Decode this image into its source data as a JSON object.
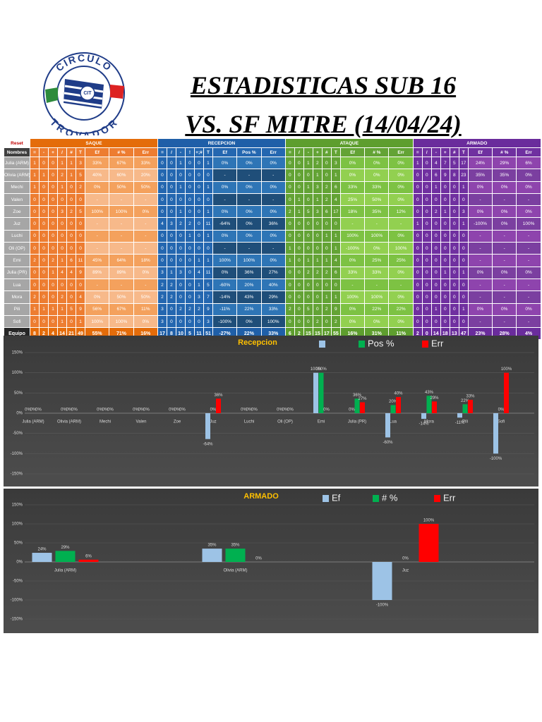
{
  "header": {
    "logo": {
      "top": "CIRCULO",
      "bottom": "TROVADOR",
      "badge": "CIT"
    },
    "title": "ESTADISTICAS SUB 16",
    "subtitle": "VS. SF MITRE (14/04/24)"
  },
  "table": {
    "reset": "Reset",
    "sections": [
      "SAQUE",
      "RECEPCION",
      "ATAQUE",
      "ARMADO"
    ],
    "columns": [
      "Nombres",
      "=",
      "-",
      "+",
      "/",
      "#",
      "T",
      "Ef",
      "# %",
      "Err",
      "=",
      "/",
      "-",
      "!",
      "+;#",
      "T",
      "Ef",
      "Pos %",
      "Err",
      "=",
      "/",
      "-",
      "+",
      "#",
      "T",
      "Ef",
      "# %",
      "Err",
      "=",
      "/",
      "-",
      "+",
      "#",
      "T",
      "Ef",
      "# %",
      "Err"
    ],
    "rows": [
      [
        "Julia (ARM)",
        "1",
        "0",
        "0",
        "1",
        "1",
        "3",
        "33%",
        "67%",
        "33%",
        "0",
        "0",
        "1",
        "0",
        "0",
        "1",
        "0%",
        "0%",
        "0%",
        "0",
        "0",
        "1",
        "2",
        "0",
        "3",
        "0%",
        "0%",
        "0%",
        "1",
        "0",
        "4",
        "7",
        "5",
        "17",
        "24%",
        "29%",
        "6%"
      ],
      [
        "Olivia (ARM)",
        "1",
        "1",
        "0",
        "2",
        "1",
        "5",
        "40%",
        "60%",
        "20%",
        "0",
        "0",
        "0",
        "0",
        "0",
        "0",
        "-",
        "-",
        "-",
        "0",
        "0",
        "0",
        "1",
        "0",
        "1",
        "0%",
        "0%",
        "0%",
        "0",
        "0",
        "6",
        "9",
        "8",
        "23",
        "35%",
        "35%",
        "0%"
      ],
      [
        "Mechi",
        "1",
        "0",
        "0",
        "1",
        "0",
        "2",
        "0%",
        "50%",
        "50%",
        "0",
        "0",
        "1",
        "0",
        "0",
        "1",
        "0%",
        "0%",
        "0%",
        "0",
        "0",
        "1",
        "3",
        "2",
        "6",
        "33%",
        "33%",
        "0%",
        "0",
        "0",
        "1",
        "0",
        "0",
        "1",
        "0%",
        "0%",
        "0%"
      ],
      [
        "Valen",
        "0",
        "0",
        "0",
        "0",
        "0",
        "0",
        "-",
        "-",
        "-",
        "0",
        "0",
        "0",
        "0",
        "0",
        "0",
        "-",
        "-",
        "-",
        "0",
        "1",
        "0",
        "1",
        "2",
        "4",
        "25%",
        "50%",
        "0%",
        "0",
        "0",
        "0",
        "0",
        "0",
        "0",
        "-",
        "-",
        "-"
      ],
      [
        "Zoe",
        "0",
        "0",
        "0",
        "3",
        "2",
        "5",
        "100%",
        "100%",
        "0%",
        "0",
        "0",
        "1",
        "0",
        "0",
        "1",
        "0%",
        "0%",
        "0%",
        "2",
        "1",
        "5",
        "3",
        "6",
        "17",
        "18%",
        "35%",
        "12%",
        "0",
        "0",
        "2",
        "1",
        "0",
        "3",
        "0%",
        "0%",
        "0%"
      ],
      [
        "Juz",
        "0",
        "0",
        "0",
        "0",
        "0",
        "0",
        "-",
        "-",
        "-",
        "4",
        "3",
        "2",
        "2",
        "0",
        "11",
        "-64%",
        "0%",
        "36%",
        "0",
        "0",
        "0",
        "0",
        "0",
        "0",
        "-",
        "-",
        "-",
        "1",
        "0",
        "0",
        "0",
        "0",
        "1",
        "-100%",
        "0%",
        "100%"
      ],
      [
        "Luchi",
        "0",
        "0",
        "0",
        "0",
        "0",
        "0",
        "-",
        "-",
        "-",
        "0",
        "0",
        "0",
        "1",
        "0",
        "1",
        "0%",
        "0%",
        "0%",
        "0",
        "0",
        "0",
        "0",
        "1",
        "1",
        "100%",
        "100%",
        "0%",
        "0",
        "0",
        "0",
        "0",
        "0",
        "0",
        "-",
        "-",
        "-"
      ],
      [
        "Oli (OP)",
        "0",
        "0",
        "0",
        "0",
        "0",
        "0",
        "-",
        "-",
        "-",
        "0",
        "0",
        "0",
        "0",
        "0",
        "0",
        "-",
        "-",
        "-",
        "1",
        "0",
        "0",
        "0",
        "0",
        "1",
        "-100%",
        "0%",
        "100%",
        "0",
        "0",
        "0",
        "0",
        "0",
        "0",
        "-",
        "-",
        "-"
      ],
      [
        "Emi",
        "2",
        "0",
        "2",
        "1",
        "6",
        "11",
        "45%",
        "64%",
        "18%",
        "0",
        "0",
        "0",
        "0",
        "1",
        "1",
        "100%",
        "100%",
        "0%",
        "1",
        "0",
        "1",
        "1",
        "1",
        "4",
        "0%",
        "25%",
        "25%",
        "0",
        "0",
        "0",
        "0",
        "0",
        "0",
        "-",
        "-",
        "-"
      ],
      [
        "Julia (PR)",
        "0",
        "0",
        "1",
        "4",
        "4",
        "9",
        "89%",
        "89%",
        "0%",
        "3",
        "1",
        "3",
        "0",
        "4",
        "11",
        "0%",
        "36%",
        "27%",
        "0",
        "0",
        "2",
        "2",
        "2",
        "6",
        "33%",
        "33%",
        "0%",
        "0",
        "0",
        "0",
        "1",
        "0",
        "1",
        "0%",
        "0%",
        "0%"
      ],
      [
        "Lua",
        "0",
        "0",
        "0",
        "0",
        "0",
        "0",
        "-",
        "-",
        "-",
        "2",
        "2",
        "0",
        "0",
        "1",
        "5",
        "-60%",
        "20%",
        "40%",
        "0",
        "0",
        "0",
        "0",
        "0",
        "0",
        "-",
        "-",
        "-",
        "0",
        "0",
        "0",
        "0",
        "0",
        "0",
        "-",
        "-",
        "-"
      ],
      [
        "Mora",
        "2",
        "0",
        "0",
        "2",
        "0",
        "4",
        "0%",
        "50%",
        "50%",
        "2",
        "2",
        "0",
        "0",
        "3",
        "7",
        "-14%",
        "43%",
        "29%",
        "0",
        "0",
        "0",
        "0",
        "1",
        "1",
        "100%",
        "100%",
        "0%",
        "0",
        "0",
        "0",
        "0",
        "0",
        "0",
        "-",
        "-",
        "-"
      ],
      [
        "Pili",
        "1",
        "1",
        "1",
        "1",
        "5",
        "9",
        "56%",
        "67%",
        "11%",
        "3",
        "0",
        "2",
        "2",
        "2",
        "9",
        "-11%",
        "22%",
        "33%",
        "2",
        "0",
        "5",
        "0",
        "2",
        "9",
        "0%",
        "22%",
        "22%",
        "0",
        "0",
        "1",
        "0",
        "0",
        "1",
        "0%",
        "0%",
        "0%"
      ],
      [
        "Sofi",
        "0",
        "0",
        "0",
        "1",
        "0",
        "1",
        "100%",
        "100%",
        "0%",
        "3",
        "0",
        "0",
        "0",
        "0",
        "3",
        "-100%",
        "0%",
        "100%",
        "0",
        "0",
        "0",
        "2",
        "0",
        "2",
        "0%",
        "0%",
        "0%",
        "0",
        "0",
        "0",
        "0",
        "0",
        "0",
        "-",
        "-",
        "-"
      ],
      [
        "Equipo",
        "8",
        "2",
        "4",
        "14",
        "21",
        "49",
        "55%",
        "71%",
        "16%",
        "17",
        "8",
        "10",
        "5",
        "11",
        "51",
        "-27%",
        "22%",
        "33%",
        "6",
        "2",
        "15",
        "15",
        "17",
        "55",
        "16%",
        "31%",
        "11%",
        "2",
        "0",
        "14",
        "18",
        "13",
        "47",
        "23%",
        "28%",
        "4%"
      ]
    ]
  },
  "chart_data": [
    {
      "type": "bar",
      "title": "Recepcion",
      "categories": [
        "Julia (ARM)",
        "Olivia (ARM)",
        "Mechi",
        "Valen",
        "Zoe",
        "Juz",
        "Luchi",
        "Oli (OP)",
        "Emi",
        "Julia (PR)",
        "Lua",
        "Mora",
        "Pili",
        "Sofi"
      ],
      "series": [
        {
          "color": "#9dc3e6",
          "values": [
            0,
            0,
            0,
            0,
            0,
            -64,
            0,
            0,
            100,
            0,
            -60,
            -14,
            -11,
            -100
          ],
          "value_labels": [
            "0%",
            "0%",
            "0%",
            "0%",
            "0%",
            "-64%",
            "0%",
            "0%",
            "100%",
            "0%",
            "-60%",
            "-14%",
            "-11%",
            "-100%"
          ]
        },
        {
          "name": "Pos %",
          "color": "#00b050",
          "values": [
            0,
            0,
            0,
            0,
            0,
            0,
            0,
            0,
            100,
            36,
            20,
            43,
            22,
            0
          ],
          "value_labels": [
            "0%",
            "0%",
            "0%",
            "0%",
            "0%",
            "0%",
            "0%",
            "0%",
            "100%",
            "36%",
            "20%",
            "43%",
            "22%",
            "0%"
          ]
        },
        {
          "name": "Err",
          "color": "#ff0000",
          "values": [
            0,
            0,
            0,
            0,
            0,
            36,
            0,
            0,
            0,
            27,
            40,
            29,
            33,
            100
          ],
          "value_labels": [
            "0%",
            "0%",
            "0%",
            "0%",
            "0%",
            "36%",
            "0%",
            "0%",
            "0%",
            "27%",
            "40%",
            "29%",
            "33%",
            "100%"
          ]
        }
      ],
      "ylim": [
        -150,
        150
      ],
      "yticks": [
        {
          "value": -150,
          "label": "-150%"
        },
        {
          "value": -100,
          "label": "-100%"
        },
        {
          "value": -50,
          "label": "-50%"
        },
        {
          "value": 0,
          "label": "0%"
        },
        {
          "value": 50,
          "label": "50%"
        },
        {
          "value": 100,
          "label": "100%"
        },
        {
          "value": 150,
          "label": "150%"
        }
      ],
      "grid": true
    },
    {
      "type": "bar",
      "title": "ARMADO",
      "categories": [
        "Julia (ARM)",
        "Olivia (ARM)",
        "Juz"
      ],
      "series": [
        {
          "name": "Ef",
          "color": "#9dc3e6",
          "values": [
            24,
            35,
            -100
          ],
          "value_labels": [
            "24%",
            "35%",
            "-100%"
          ]
        },
        {
          "name": "# %",
          "color": "#00b050",
          "values": [
            29,
            35,
            0
          ],
          "value_labels": [
            "29%",
            "35%",
            "0%"
          ]
        },
        {
          "name": "Err",
          "color": "#ff0000",
          "values": [
            6,
            0,
            100
          ],
          "value_labels": [
            "6%",
            "0%",
            "100%"
          ]
        }
      ],
      "ylim": [
        -150,
        150
      ],
      "yticks": [
        {
          "value": -150,
          "label": "-150%"
        },
        {
          "value": -100,
          "label": "-100%"
        },
        {
          "value": -50,
          "label": "-50%"
        },
        {
          "value": 0,
          "label": "0%"
        },
        {
          "value": 50,
          "label": "50%"
        },
        {
          "value": 100,
          "label": "100%"
        },
        {
          "value": 150,
          "label": "150%"
        }
      ],
      "grid": true
    }
  ]
}
